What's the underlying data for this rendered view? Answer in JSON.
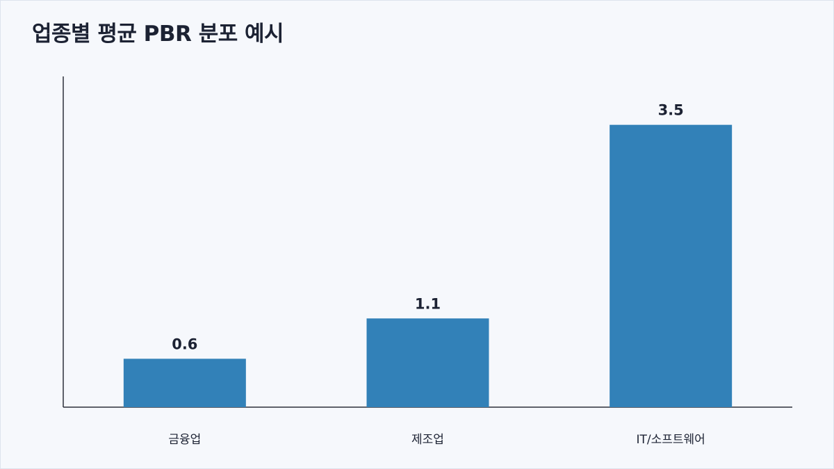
{
  "title": "업종별 평균 PBR 분포 예시",
  "chart_data": {
    "type": "bar",
    "title": "업종별 평균 PBR 분포 예시",
    "categories": [
      "금융업",
      "제조업",
      "IT/소프트웨어"
    ],
    "values": [
      0.6,
      1.1,
      3.5
    ],
    "value_labels": [
      "0.6",
      "1.1",
      "3.5"
    ],
    "xlabel": "",
    "ylabel": "",
    "ylim": [
      0,
      4.1
    ],
    "grid": false,
    "bar_color": "#3281b8",
    "axis_color": "#2b2f3a"
  }
}
